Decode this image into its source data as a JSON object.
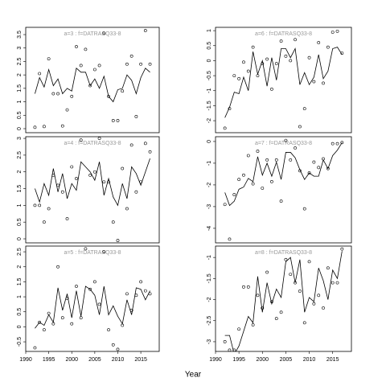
{
  "xlabel": "Year",
  "chart_data": [
    {
      "type": "line",
      "title": "a=3 : f=DATRASQ33-8",
      "xlim": [
        1990,
        2019
      ],
      "ylim": [
        -0.15,
        3.77
      ],
      "yticks": [
        0,
        0.5,
        1,
        1.5,
        2,
        2.5,
        3,
        3.5
      ],
      "x": [
        1992,
        1993,
        1994,
        1995,
        1996,
        1997,
        1998,
        1999,
        2000,
        2001,
        2002,
        2003,
        2004,
        2005,
        2006,
        2007,
        2008,
        2009,
        2010,
        2011,
        2012,
        2013,
        2014,
        2015,
        2016,
        2017
      ],
      "series": [
        {
          "mode": "points",
          "color": "#000000",
          "values": [
            0.05,
            2.05,
            0.08,
            2.6,
            1.3,
            1.3,
            0.1,
            0.7,
            1.2,
            3.05,
            2.35,
            2.95,
            1.6,
            2.2,
            2.35,
            3.55,
            1.2,
            0.3,
            0.3,
            1.4,
            2.4,
            2.7,
            0.45,
            2.4,
            3.65,
            2.4
          ]
        },
        {
          "mode": "line",
          "color": "#000000",
          "values": [
            1.3,
            1.9,
            1.55,
            2.2,
            1.6,
            1.85,
            1.3,
            1.5,
            1.4,
            2.25,
            2.1,
            2.1,
            1.6,
            1.85,
            1.5,
            1.95,
            1.2,
            1.0,
            1.45,
            1.5,
            2.0,
            1.8,
            1.3,
            1.9,
            2.25,
            2.1
          ]
        }
      ]
    },
    {
      "type": "line",
      "title": "a=4 : f=DATRASQ33-8",
      "xlim": [
        1990,
        2019
      ],
      "ylim": [
        -0.12,
        3.05
      ],
      "yticks": [
        0,
        0.5,
        1,
        1.5,
        2,
        2.5,
        3
      ],
      "x": [
        1992,
        1993,
        1994,
        1995,
        1996,
        1997,
        1998,
        1999,
        2000,
        2001,
        2002,
        2003,
        2004,
        2005,
        2006,
        2007,
        2008,
        2009,
        2010,
        2011,
        2012,
        2013,
        2014,
        2015,
        2016,
        2017
      ],
      "series": [
        {
          "mode": "points",
          "color": "#000000",
          "values": [
            1.0,
            1.0,
            0.5,
            0.9,
            1.9,
            1.6,
            1.4,
            0.6,
            2.15,
            1.8,
            2.95,
            3.1,
            1.9,
            2.0,
            3.0,
            1.7,
            1.7,
            0.5,
            -0.05,
            2.1,
            0.9,
            2.8,
            1.4,
            1.7,
            2.85,
            2.6
          ]
        },
        {
          "mode": "line",
          "color": "#000000",
          "values": [
            1.5,
            1.1,
            1.65,
            1.3,
            2.1,
            1.4,
            1.95,
            1.2,
            1.65,
            1.45,
            2.3,
            2.15,
            2.0,
            1.75,
            2.3,
            1.3,
            1.8,
            1.25,
            1.0,
            1.65,
            1.2,
            2.15,
            1.95,
            1.6,
            2.0,
            2.4
          ]
        }
      ]
    },
    {
      "type": "line",
      "title": "a=5 : f=DATRASQ33-8",
      "xlim": [
        1990,
        2019
      ],
      "ylim": [
        -0.82,
        2.69
      ],
      "yticks": [
        -0.5,
        0,
        0.5,
        1,
        1.5,
        2,
        2.5
      ],
      "xticks": [
        1990,
        1995,
        2000,
        2005,
        2010,
        2015
      ],
      "x": [
        1992,
        1993,
        1994,
        1995,
        1996,
        1997,
        1998,
        1999,
        2000,
        2001,
        2002,
        2003,
        2004,
        2005,
        2006,
        2007,
        2008,
        2009,
        2010,
        2011,
        2012,
        2013,
        2014,
        2015,
        2016,
        2017
      ],
      "series": [
        {
          "mode": "points",
          "color": "#000000",
          "values": [
            -0.7,
            0.15,
            -0.1,
            0.45,
            0.1,
            2.0,
            0.3,
            0.95,
            0.1,
            1.35,
            0.3,
            2.6,
            1.25,
            1.5,
            0.75,
            2.5,
            -0.1,
            -0.6,
            -0.75,
            0.05,
            1.1,
            0.55,
            1.05,
            1.5,
            1.2,
            1.1
          ]
        },
        {
          "mode": "line",
          "color": "#000000",
          "values": [
            -0.05,
            0.15,
            0.05,
            0.4,
            0.15,
            1.3,
            0.55,
            1.1,
            0.3,
            1.2,
            0.35,
            1.35,
            1.25,
            1.05,
            0.4,
            1.35,
            0.4,
            0.7,
            0.35,
            0.1,
            0.9,
            0.4,
            1.3,
            1.25,
            0.9,
            1.2
          ]
        }
      ]
    },
    {
      "type": "line",
      "title": "a=6 : f=DATRASQ33-8",
      "xlim": [
        1990,
        2019
      ],
      "ylim": [
        -2.4,
        1.11
      ],
      "yticks": [
        -2,
        -1.5,
        -1,
        -0.5,
        0,
        0.5,
        1
      ],
      "x": [
        1992,
        1993,
        1994,
        1995,
        1996,
        1997,
        1998,
        1999,
        2000,
        2001,
        2002,
        2003,
        2004,
        2005,
        2006,
        2007,
        2008,
        2009,
        2010,
        2011,
        2012,
        2013,
        2014,
        2015,
        2016,
        2017
      ],
      "series": [
        {
          "mode": "points",
          "color": "#000000",
          "values": [
            -2.25,
            -1.6,
            -0.5,
            -0.6,
            -0.05,
            -0.35,
            0.45,
            -0.5,
            -0.1,
            0.05,
            -0.95,
            -0.1,
            0.65,
            0.15,
            0.0,
            0.7,
            -2.2,
            -1.6,
            0.1,
            -0.7,
            0.6,
            -0.75,
            0.45,
            0.95,
            0.98,
            0.25
          ]
        },
        {
          "mode": "line",
          "color": "#000000",
          "values": [
            -1.9,
            -1.55,
            -1.05,
            -1.1,
            -0.55,
            -1.0,
            0.3,
            -0.45,
            0.0,
            -0.85,
            0.1,
            -0.65,
            0.4,
            0.4,
            0.1,
            0.4,
            -0.8,
            -0.4,
            -0.8,
            -0.55,
            0.2,
            -0.6,
            -0.35,
            0.4,
            0.45,
            0.2
          ]
        }
      ]
    },
    {
      "type": "line",
      "title": "a=7 : f=DATRASQ33-8",
      "xlim": [
        1990,
        2019
      ],
      "ylim": [
        -4.67,
        0.22
      ],
      "yticks": [
        -4,
        -3,
        -2,
        -1,
        0
      ],
      "x": [
        1992,
        1993,
        1994,
        1995,
        1996,
        1997,
        1998,
        1999,
        2000,
        2001,
        2002,
        2003,
        2004,
        2005,
        2006,
        2007,
        2008,
        2009,
        2010,
        2011,
        2012,
        2013,
        2014,
        2015,
        2016,
        2017
      ],
      "series": [
        {
          "mode": "points",
          "color": "#000000",
          "values": [
            -2.9,
            -4.5,
            -2.45,
            -1.75,
            -1.55,
            -0.65,
            -1.95,
            -0.45,
            -2.15,
            -0.85,
            -1.85,
            -0.85,
            -2.75,
            0.05,
            -0.85,
            -0.3,
            -1.35,
            -3.1,
            -1.45,
            -0.95,
            -1.2,
            -0.8,
            -1.25,
            -0.1,
            -0.1,
            -0.05
          ]
        },
        {
          "mode": "line",
          "color": "#000000",
          "values": [
            -2.35,
            -2.95,
            -2.75,
            -2.2,
            -2.1,
            -1.7,
            -1.85,
            -0.7,
            -1.55,
            -1.0,
            -1.6,
            -0.95,
            -1.75,
            -0.5,
            -0.5,
            -0.75,
            -1.3,
            -1.75,
            -1.45,
            -1.6,
            -1.6,
            -0.85,
            -1.25,
            -0.65,
            -0.4,
            -0.05
          ]
        }
      ]
    },
    {
      "type": "line",
      "title": "a=8 : f=DATRASQ33-8",
      "xlim": [
        1990,
        2019
      ],
      "ylim": [
        -3.23,
        -0.73
      ],
      "yticks": [
        -3,
        -2.5,
        -2,
        -1.5,
        -1
      ],
      "xticks": [
        1990,
        1995,
        2000,
        2005,
        2010,
        2015
      ],
      "x": [
        1992,
        1993,
        1994,
        1995,
        1996,
        1997,
        1998,
        1999,
        2000,
        2001,
        2002,
        2003,
        2004,
        2005,
        2006,
        2007,
        2008,
        2009,
        2010,
        2011,
        2012,
        2013,
        2014,
        2015,
        2016,
        2017
      ],
      "series": [
        {
          "mode": "points",
          "color": "#000000",
          "values": [
            -3.0,
            -3.2,
            -3.2,
            -2.7,
            -1.7,
            -1.7,
            -2.6,
            -1.9,
            -2.2,
            -1.35,
            -2.05,
            -2.45,
            -2.3,
            -1.05,
            -1.4,
            -1.6,
            -1.8,
            -2.55,
            -1.1,
            -2.1,
            -1.9,
            -2.2,
            -1.25,
            -1.6,
            -1.6,
            -0.8
          ]
        },
        {
          "mode": "line",
          "color": "#000000",
          "values": [
            -2.85,
            -2.85,
            -3.3,
            -3.1,
            -2.75,
            -2.4,
            -2.55,
            -1.45,
            -2.3,
            -1.6,
            -2.1,
            -1.75,
            -1.95,
            -1.1,
            -1.0,
            -1.6,
            -1.05,
            -2.3,
            -1.95,
            -2.05,
            -1.25,
            -1.55,
            -2.0,
            -1.3,
            -1.5,
            -0.85
          ]
        }
      ]
    }
  ]
}
